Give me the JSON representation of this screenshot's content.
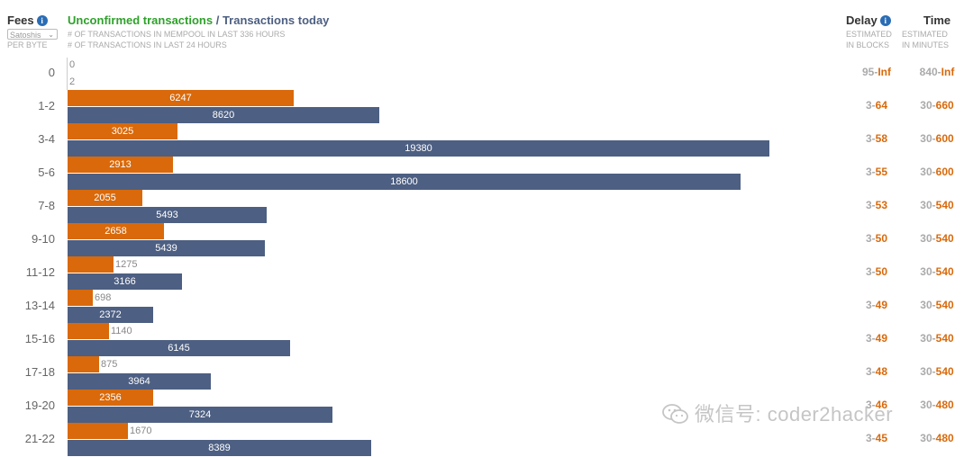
{
  "header": {
    "fees_title": "Fees",
    "unit_select_value": "Satoshis",
    "per_byte": "PER BYTE",
    "unconfirmed_label": "Unconfirmed transactions",
    "separator": " / ",
    "today_label": "Transactions today",
    "sub1": "# OF TRANSACTIONS IN MEMPOOL IN LAST 336 HOURS",
    "sub2": "# OF TRANSACTIONS IN LAST 24 HOURS",
    "delay_title": "Delay",
    "delay_sub1": "ESTIMATED",
    "delay_sub2": "IN BLOCKS",
    "time_title": "Time",
    "time_sub1": "ESTIMATED",
    "time_sub2": "IN MINUTES"
  },
  "colors": {
    "unconfirmed": "#d9690a",
    "today": "#4d5f82",
    "green": "#2fa12b"
  },
  "watermark": "微信号: coder2hacker",
  "chart_data": {
    "type": "bar",
    "orientation": "horizontal",
    "categories": [
      "0",
      "1-2",
      "3-4",
      "5-6",
      "7-8",
      "9-10",
      "11-12",
      "13-14",
      "15-16",
      "17-18",
      "19-20",
      "21-22"
    ],
    "series": [
      {
        "name": "Unconfirmed transactions",
        "values": [
          0,
          6247,
          3025,
          2913,
          2055,
          2658,
          1275,
          698,
          1140,
          875,
          2356,
          1670
        ]
      },
      {
        "name": "Transactions today",
        "values": [
          2,
          8620,
          19380,
          18600,
          5493,
          5439,
          3166,
          2372,
          6145,
          3964,
          7324,
          8389
        ]
      }
    ],
    "delay": [
      {
        "lo": "95",
        "hi": "Inf"
      },
      {
        "lo": "3",
        "hi": "64"
      },
      {
        "lo": "3",
        "hi": "58"
      },
      {
        "lo": "3",
        "hi": "55"
      },
      {
        "lo": "3",
        "hi": "53"
      },
      {
        "lo": "3",
        "hi": "50"
      },
      {
        "lo": "3",
        "hi": "50"
      },
      {
        "lo": "3",
        "hi": "49"
      },
      {
        "lo": "3",
        "hi": "49"
      },
      {
        "lo": "3",
        "hi": "48"
      },
      {
        "lo": "3",
        "hi": "46"
      },
      {
        "lo": "3",
        "hi": "45"
      }
    ],
    "time": [
      {
        "lo": "840",
        "hi": "Inf"
      },
      {
        "lo": "30",
        "hi": "660"
      },
      {
        "lo": "30",
        "hi": "600"
      },
      {
        "lo": "30",
        "hi": "600"
      },
      {
        "lo": "30",
        "hi": "540"
      },
      {
        "lo": "30",
        "hi": "540"
      },
      {
        "lo": "30",
        "hi": "540"
      },
      {
        "lo": "30",
        "hi": "540"
      },
      {
        "lo": "30",
        "hi": "540"
      },
      {
        "lo": "30",
        "hi": "540"
      },
      {
        "lo": "30",
        "hi": "480"
      },
      {
        "lo": "30",
        "hi": "480"
      }
    ]
  }
}
